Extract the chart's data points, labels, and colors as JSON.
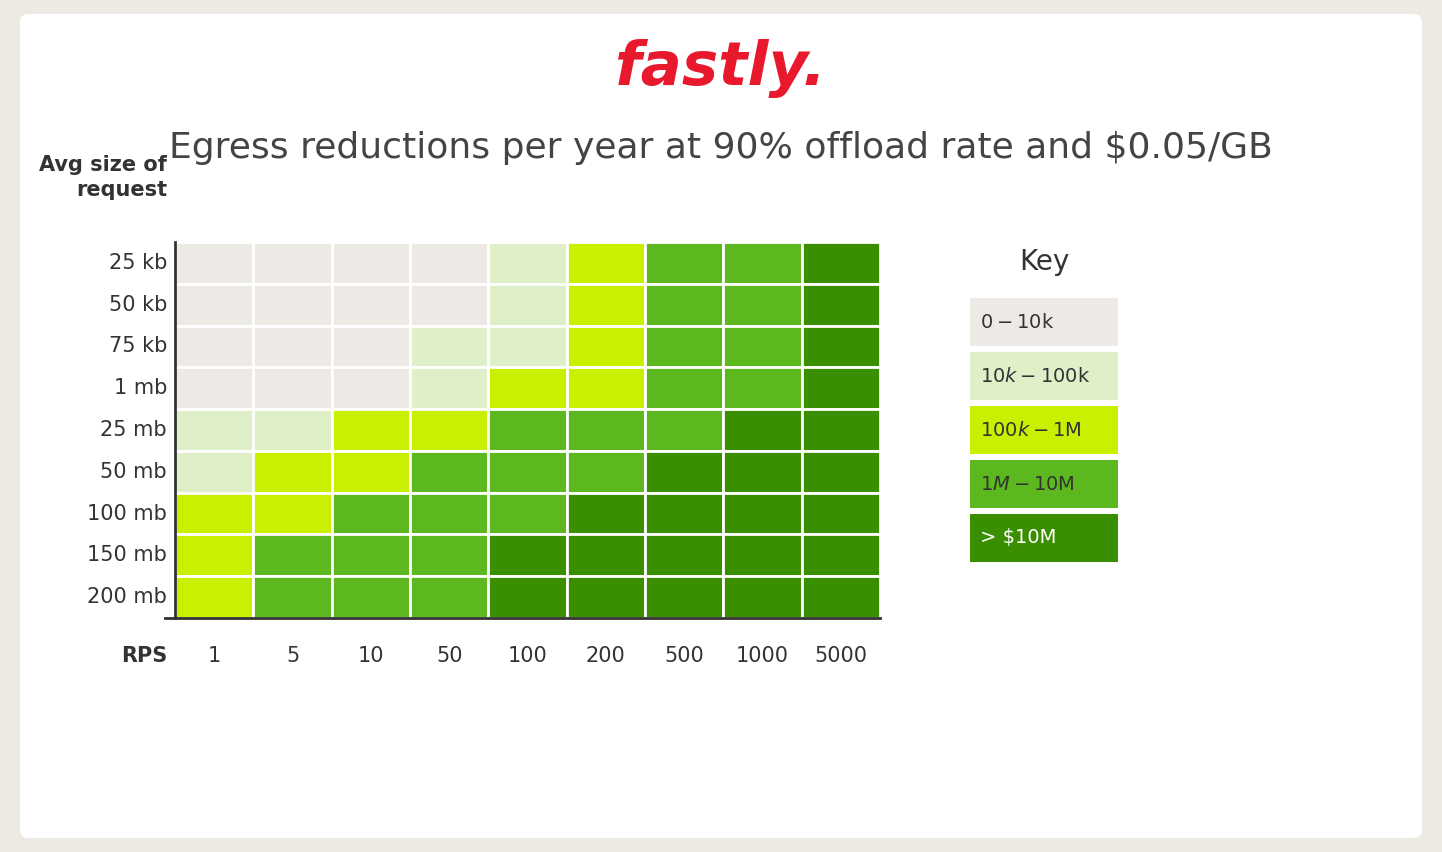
{
  "title": "Egress reductions per year at 90% offload rate and $0.05/GB",
  "fastly_text": "fastly.",
  "y_labels": [
    "25 kb",
    "50 kb",
    "75 kb",
    "1 mb",
    "25 mb",
    "50 mb",
    "100 mb",
    "150 mb",
    "200 mb"
  ],
  "x_labels": [
    "1",
    "5",
    "10",
    "50",
    "100",
    "200",
    "500",
    "1000",
    "5000"
  ],
  "colors": [
    "#ede9e4",
    "#dff0c8",
    "#c8f000",
    "#5cb81e",
    "#3a8f00"
  ],
  "key_labels": [
    "$0-$10k",
    "$10k-$100k",
    "$100k-$1M",
    "$1M-$10M",
    "> $10M"
  ],
  "key_text_colors": [
    "#333333",
    "#333333",
    "#333333",
    "#333333",
    "#ffffff"
  ],
  "grid": [
    [
      0,
      0,
      0,
      0,
      1,
      2,
      3,
      3,
      4
    ],
    [
      0,
      0,
      0,
      0,
      1,
      2,
      3,
      3,
      4
    ],
    [
      0,
      0,
      0,
      1,
      1,
      2,
      3,
      3,
      4
    ],
    [
      0,
      0,
      0,
      1,
      2,
      2,
      3,
      3,
      4
    ],
    [
      1,
      1,
      2,
      2,
      3,
      3,
      3,
      4,
      4
    ],
    [
      1,
      2,
      2,
      3,
      3,
      3,
      4,
      4,
      4
    ],
    [
      2,
      2,
      3,
      3,
      3,
      4,
      4,
      4,
      4
    ],
    [
      2,
      3,
      3,
      3,
      4,
      4,
      4,
      4,
      4
    ],
    [
      2,
      3,
      3,
      3,
      4,
      4,
      4,
      4,
      4
    ]
  ],
  "bg_color": "#ede9e3",
  "card_color": "#ffffff",
  "fastly_color": "#e8192c"
}
